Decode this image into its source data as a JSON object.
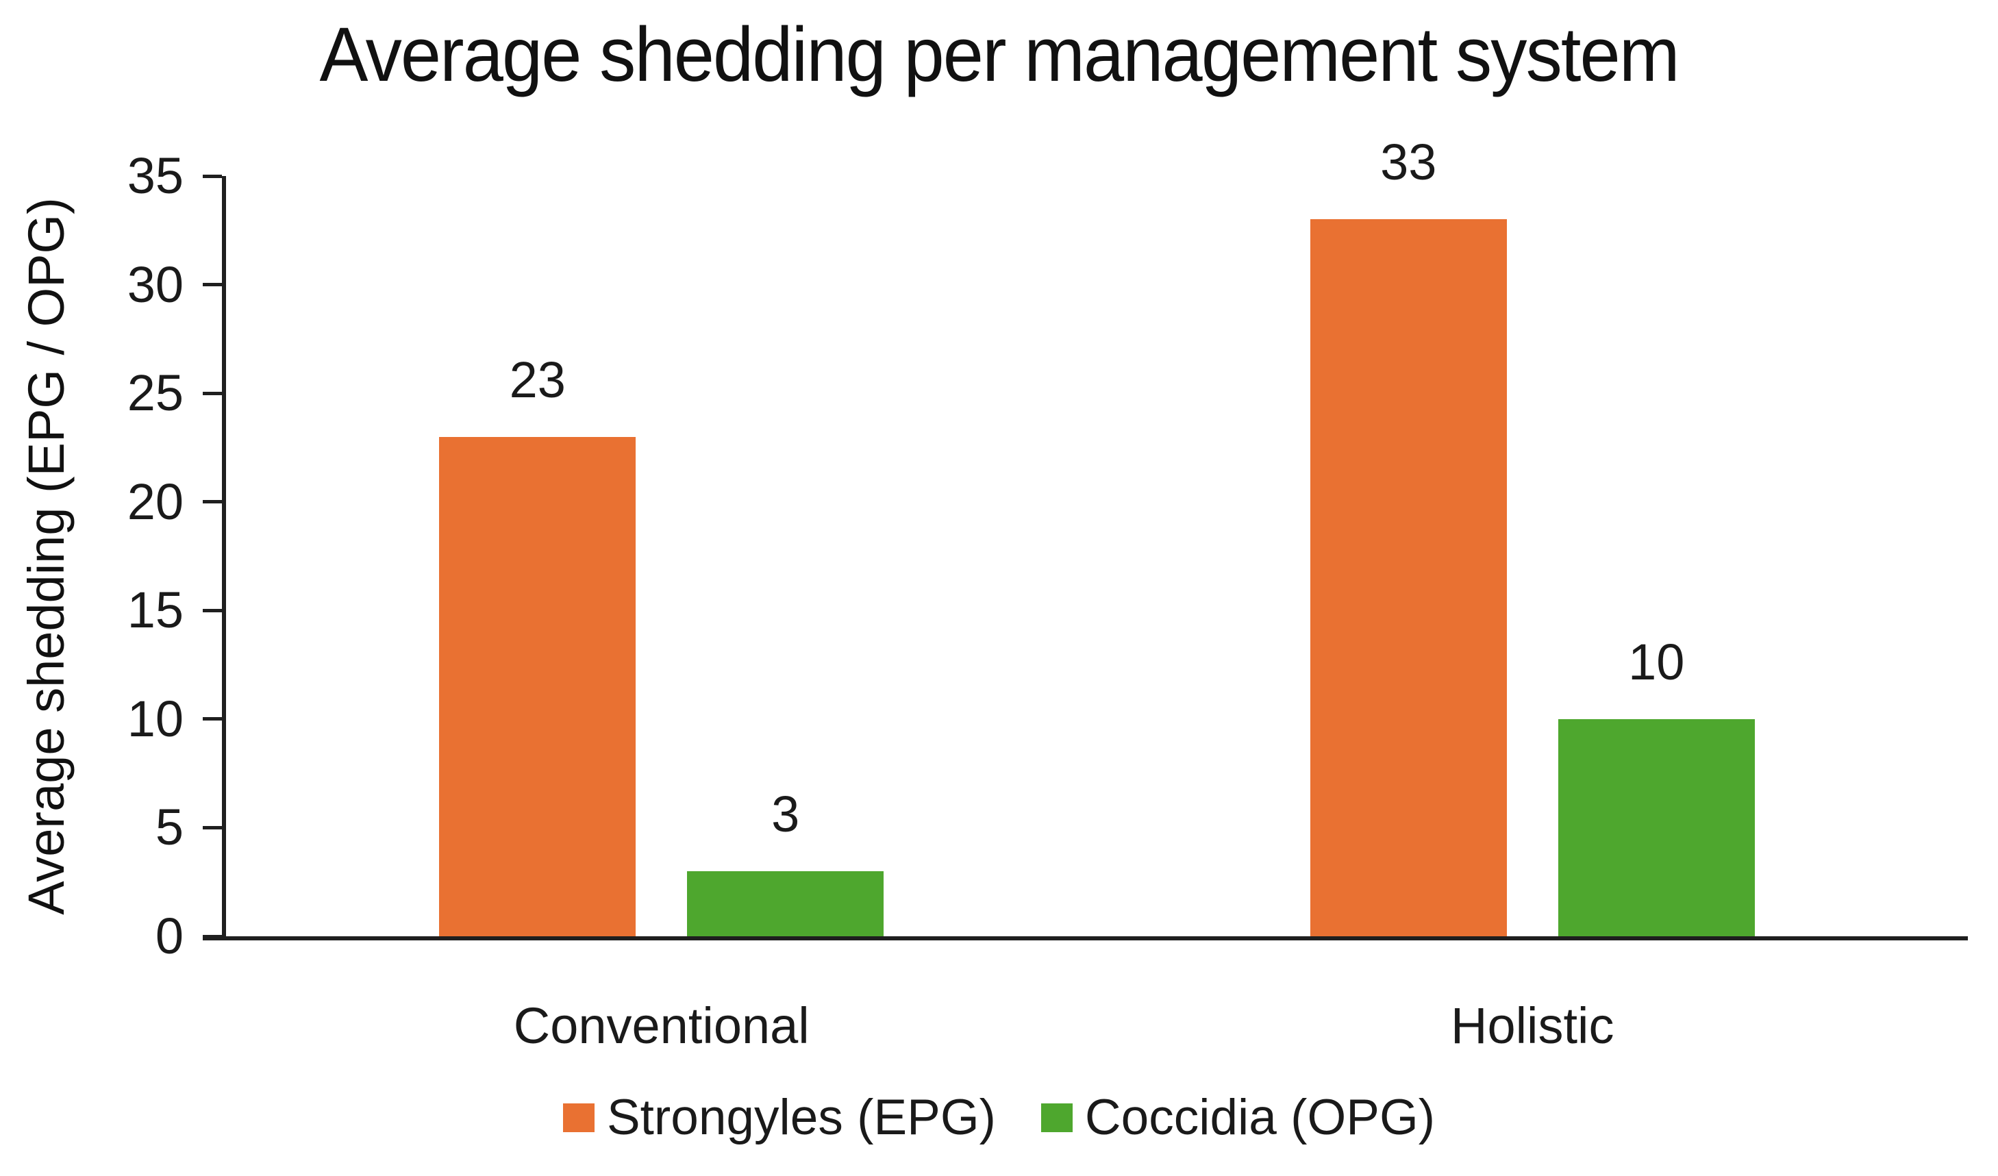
{
  "chart_data": {
    "type": "bar",
    "title": "Average shedding per management system",
    "xlabel": "",
    "ylabel": "Average shedding (EPG / OPG)",
    "categories": [
      "Conventional",
      "Holistic"
    ],
    "series": [
      {
        "name": "Strongyles (EPG)",
        "color": "#E97132",
        "values": [
          23,
          33
        ]
      },
      {
        "name": "Coccidia (OPG)",
        "color": "#4EA72E",
        "values": [
          3,
          10
        ]
      }
    ],
    "data_labels": {
      "Strongyles (EPG)": [
        "23",
        "33"
      ],
      "Coccidia (OPG)": [
        "3",
        "10"
      ]
    },
    "ylim": [
      0,
      35
    ],
    "yticks": [
      0,
      5,
      10,
      15,
      20,
      25,
      30,
      35
    ],
    "grid": false,
    "legend_position": "bottom",
    "axis_color": "#1f1f1f",
    "text_color": "#1a1a1a"
  }
}
